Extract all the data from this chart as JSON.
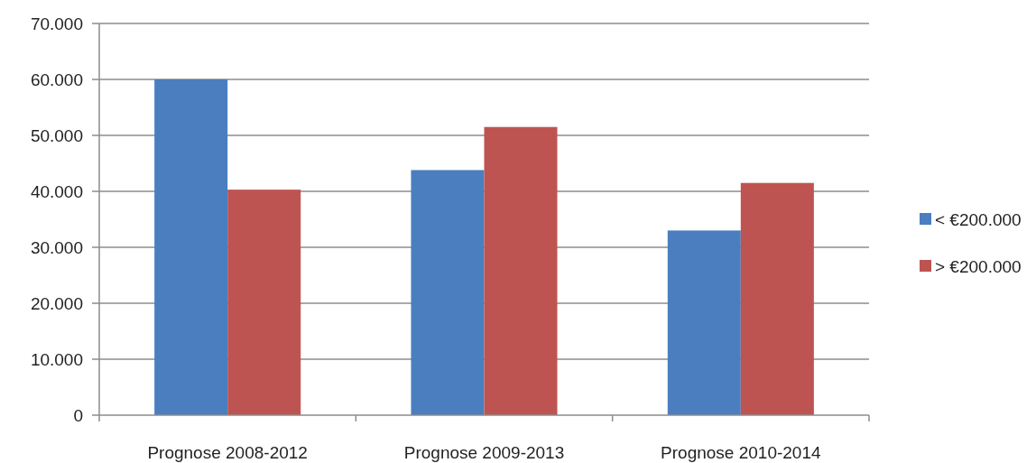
{
  "chart_data": {
    "type": "bar",
    "categories": [
      "Prognose 2008-2012",
      "Prognose 2009-2013",
      "Prognose 2010-2014"
    ],
    "series": [
      {
        "name": "< €200.000",
        "color": "#4a7ebf",
        "values": [
          60000,
          43800,
          33000
        ]
      },
      {
        "name": "> €200.000",
        "color": "#be5451",
        "values": [
          40300,
          51500,
          41500
        ]
      }
    ],
    "ylim": [
      0,
      70000
    ],
    "yticks": [
      {
        "value": 0,
        "label": "0"
      },
      {
        "value": 10000,
        "label": "10.000"
      },
      {
        "value": 20000,
        "label": "20.000"
      },
      {
        "value": 30000,
        "label": "30.000"
      },
      {
        "value": 40000,
        "label": "40.000"
      },
      {
        "value": 50000,
        "label": "50.000"
      },
      {
        "value": 60000,
        "label": "60.000"
      },
      {
        "value": 70000,
        "label": "70.000"
      }
    ],
    "grid": "y",
    "legend": "right"
  }
}
